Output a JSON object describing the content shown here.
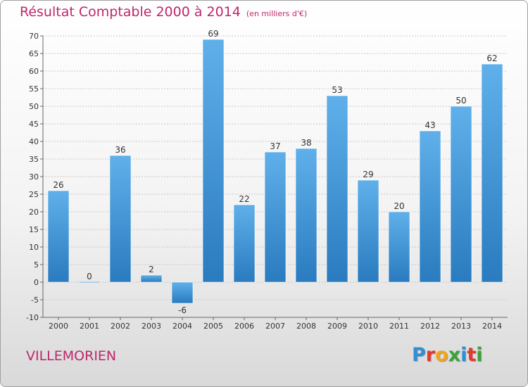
{
  "title": "Résultat Comptable 2000 à 2014",
  "unit_note": "(en milliers d'€)",
  "commune": "VILLEMORIEN",
  "logo": {
    "letters": [
      "P",
      "r",
      "o",
      "x",
      "i",
      "t",
      "i"
    ],
    "colors": [
      "#2f8fd6",
      "#e23b2e",
      "#f2a51a",
      "#3aa43a",
      "#2f8fd6",
      "#e23b2e",
      "#3aa43a"
    ]
  },
  "colors": {
    "title": "#c0266c",
    "bar_dark": "#2a7bbf",
    "bar_light": "#5fb0ea",
    "grid": "#c8c8c8",
    "axis": "#666666"
  },
  "chart_data": {
    "type": "bar",
    "categories": [
      "2000",
      "2001",
      "2002",
      "2003",
      "2004",
      "2005",
      "2006",
      "2007",
      "2008",
      "2009",
      "2010",
      "2011",
      "2012",
      "2013",
      "2014"
    ],
    "values": [
      26,
      0,
      36,
      2,
      -6,
      69,
      22,
      37,
      38,
      53,
      29,
      20,
      43,
      50,
      62
    ],
    "data_labels": [
      "26",
      "0",
      "36",
      "2",
      "-6",
      "69",
      "22",
      "37",
      "38",
      "53",
      "29",
      "20",
      "43",
      "50",
      "62"
    ],
    "ylim": [
      -10,
      70
    ],
    "yticks": [
      -10,
      -5,
      0,
      5,
      10,
      15,
      20,
      25,
      30,
      35,
      40,
      45,
      50,
      55,
      60,
      65,
      70
    ],
    "ytick_labels": [
      "-10",
      "-5",
      "0",
      "5",
      "10",
      "15",
      "20",
      "25",
      "30",
      "35",
      "40",
      "45",
      "50",
      "55",
      "60",
      "65",
      "70"
    ],
    "grid": true,
    "legend": "none",
    "xlabel": "",
    "ylabel": ""
  }
}
